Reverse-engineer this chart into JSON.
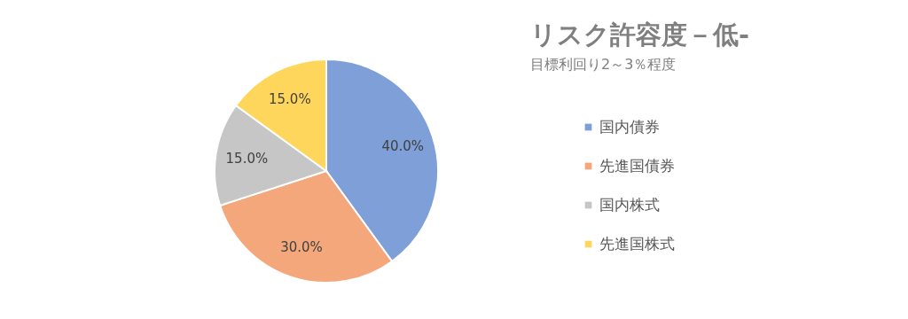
{
  "chart_data": {
    "type": "pie",
    "title": "リスク許容度－低-",
    "subtitle": "目標利回り2～3％程度",
    "categories": [
      "国内債券",
      "先進国債券",
      "国内株式",
      "先進国株式"
    ],
    "values": [
      40,
      30,
      15,
      15
    ],
    "value_labels": [
      "40.0%",
      "30.0%",
      "15.0%",
      "15.0%"
    ],
    "colors": [
      "#7f9fd8",
      "#f4a77a",
      "#c6c6c6",
      "#ffd65c"
    ],
    "legend": "right"
  }
}
